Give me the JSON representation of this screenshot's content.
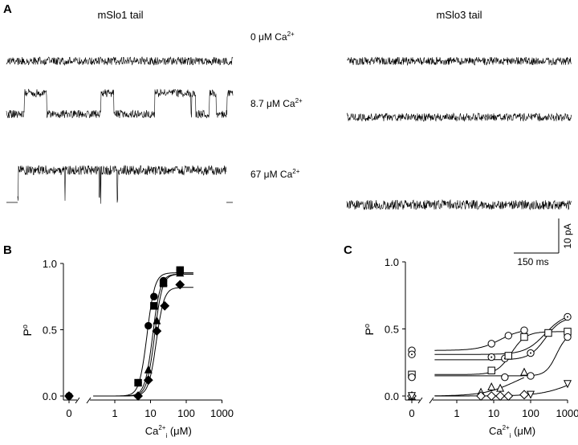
{
  "panels": {
    "A": {
      "label": "A",
      "left_title": "mSlo1 tail",
      "right_title": "mSlo3 tail",
      "conditions": [
        {
          "value": "0 μM Ca",
          "sup": "2+"
        },
        {
          "value": "8.7 μM Ca",
          "sup": "2+"
        },
        {
          "value": "67 μM Ca",
          "sup": "2+"
        }
      ],
      "scale_bar": {
        "current": "10 pA",
        "time": "150 ms"
      }
    },
    "B": {
      "label": "B"
    },
    "C": {
      "label": "C"
    }
  },
  "chart_data": [
    {
      "panel": "B",
      "type": "scatter",
      "xlabel": {
        "base": "Ca",
        "sup": "2+",
        "sub": "i",
        "unit": " (μM)"
      },
      "ylabel": {
        "base": "P",
        "sub": "o"
      },
      "x_scale": "log with break at 0",
      "x_ticks": [
        "0",
        "1",
        "10",
        "100",
        "1000"
      ],
      "y_ticks": [
        "0.0",
        "0.5",
        "1.0"
      ],
      "ylim": [
        0,
        1
      ],
      "series": [
        {
          "marker": "filled-circle",
          "x": [
            0,
            4.5,
            8.7,
            12.5,
            23,
            67
          ],
          "y": [
            0,
            0.1,
            0.53,
            0.75,
            0.87,
            0.95
          ]
        },
        {
          "marker": "filled-square",
          "x": [
            4.5,
            12.5,
            23,
            67
          ],
          "y": [
            0.1,
            0.68,
            0.85,
            0.95
          ]
        },
        {
          "marker": "filled-triangle",
          "x": [
            8.7,
            15,
            23,
            67
          ],
          "y": [
            0.2,
            0.57,
            0.86,
            0.93
          ]
        },
        {
          "marker": "filled-diamond",
          "x": [
            0,
            4.5,
            8.7,
            15,
            25,
            67
          ],
          "y": [
            0,
            0,
            0.12,
            0.49,
            0.68,
            0.84
          ]
        }
      ]
    },
    {
      "panel": "C",
      "type": "scatter",
      "xlabel": {
        "base": "Ca",
        "sup": "2+",
        "sub": "i",
        "unit": " (μM)"
      },
      "ylabel": {
        "base": "P",
        "sub": "o"
      },
      "x_scale": "log with break at 0",
      "x_ticks": [
        "0",
        "1",
        "10",
        "100",
        "1000"
      ],
      "y_ticks": [
        "0.0",
        "0.5",
        "1.0"
      ],
      "ylim": [
        0,
        1
      ],
      "series": [
        {
          "marker": "open-circle",
          "x": [
            0,
            8.7,
            25,
            67
          ],
          "y": [
            0.34,
            0.39,
            0.45,
            0.49
          ]
        },
        {
          "marker": "dotted-circle",
          "x": [
            0,
            8.7,
            20,
            100,
            1000
          ],
          "y": [
            0.31,
            0.29,
            0.28,
            0.32,
            0.59
          ]
        },
        {
          "marker": "open-square",
          "x": [
            0,
            8.7,
            25,
            67,
            300,
            1000
          ],
          "y": [
            0.16,
            0.19,
            0.3,
            0.44,
            0.47,
            0.48
          ]
        },
        {
          "marker": "open-circle",
          "x": [
            0,
            20,
            100,
            1000
          ],
          "y": [
            0.14,
            0.14,
            0.15,
            0.44
          ]
        },
        {
          "marker": "open-triangle",
          "x": [
            0,
            4.5,
            8.7,
            15,
            67
          ],
          "y": [
            0,
            0.03,
            0.07,
            0.06,
            0.18
          ]
        },
        {
          "marker": "open-diamond",
          "x": [
            0,
            4.5,
            8.7,
            15,
            25,
            67
          ],
          "y": [
            0,
            0,
            0,
            0,
            0,
            0.01
          ]
        },
        {
          "marker": "open-inverted-triangle",
          "x": [
            0,
            100,
            1000
          ],
          "y": [
            0,
            0.01,
            0.09
          ]
        }
      ]
    }
  ]
}
